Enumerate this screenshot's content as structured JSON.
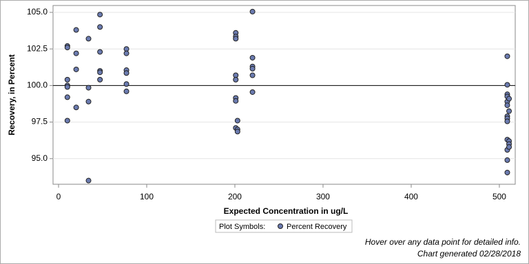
{
  "chart_data": {
    "type": "scatter",
    "xlabel": "Expected Concentration in ug/L",
    "ylabel": "Recovery, in Percent",
    "legend_title": "Plot Symbols:",
    "notes": [
      "Hover over any data point for detailed info.",
      "Chart generated 02/28/2018"
    ],
    "xlim": [
      -6.25,
      518
    ],
    "ylim": [
      93.25,
      105.47
    ],
    "xticks": [
      0,
      100,
      200,
      300,
      400,
      500
    ],
    "yticks": [
      {
        "value": 95,
        "label": "95.0"
      },
      97.5,
      {
        "value": 100,
        "label": "100.0"
      },
      102.5,
      {
        "value": 105,
        "label": "105.0"
      }
    ],
    "reference_line": 100,
    "grid": true,
    "series": [
      {
        "name": "Percent Recovery",
        "color": "#6b7bb0",
        "x": [
          10,
          10,
          10,
          10,
          10,
          10,
          10,
          20,
          20,
          20,
          20,
          34,
          34,
          34,
          34,
          47,
          47,
          47,
          47,
          47,
          47,
          77,
          77,
          77,
          77,
          77,
          77,
          201,
          201,
          201,
          201,
          201,
          201,
          201,
          201,
          203,
          203,
          203,
          220,
          220,
          220,
          220,
          220,
          220,
          509,
          509,
          509,
          509,
          509,
          509,
          509,
          509,
          509,
          509,
          509,
          509,
          509,
          511,
          511,
          511,
          511,
          511
        ],
        "values": [
          102.7,
          102.6,
          100.4,
          100.0,
          99.9,
          99.2,
          97.6,
          103.8,
          102.2,
          101.1,
          98.5,
          103.2,
          99.85,
          98.9,
          93.5,
          104.85,
          104.0,
          102.3,
          101.0,
          100.9,
          100.4,
          102.5,
          102.2,
          101.05,
          100.85,
          100.1,
          99.6,
          103.6,
          103.35,
          103.2,
          100.7,
          100.4,
          99.15,
          98.95,
          97.1,
          97.6,
          97.0,
          96.85,
          105.05,
          101.9,
          101.3,
          101.15,
          100.7,
          99.55,
          102.0,
          100.05,
          99.4,
          99.25,
          98.9,
          98.65,
          97.9,
          97.75,
          97.55,
          96.3,
          95.6,
          94.9,
          94.05,
          99.1,
          98.25,
          96.2,
          96.0,
          95.8
        ]
      }
    ]
  }
}
